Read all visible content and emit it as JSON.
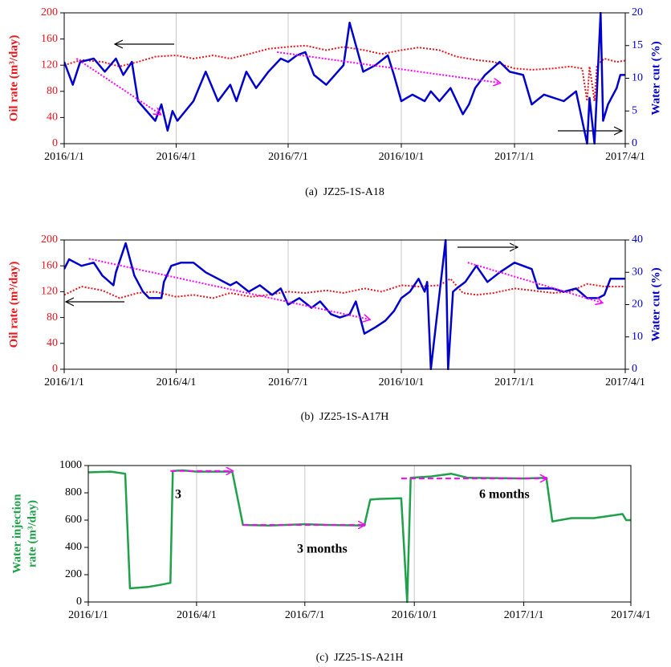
{
  "chart_data": [
    {
      "type": "line",
      "caption": "(a)  JZ25-1S-A18",
      "y_label": "Oil rate (m³/day)",
      "y2_label": "Water cut (%)",
      "xlim": [
        "2016/1/1",
        "2017/4/1"
      ],
      "xticks": [
        "2016/1/1",
        "2016/4/1",
        "2016/7/1",
        "2016/10/1",
        "2017/1/1",
        "2017/4/1"
      ],
      "ylim": [
        0,
        200
      ],
      "yticks": [
        0,
        40,
        80,
        120,
        160,
        200
      ],
      "y2lim": [
        0,
        20
      ],
      "y2ticks": [
        0,
        5,
        10,
        15,
        20
      ],
      "grid": "x",
      "y_color": "#e8141b",
      "y2_color": "#0000cc",
      "series": [
        {
          "color": "#e8141b",
          "style": "dotted",
          "x": [
            "2016/1/1",
            "2016/1/15",
            "2016/2/1",
            "2016/2/15",
            "2016/3/1",
            "2016/3/15",
            "2016/4/1",
            "2016/4/15",
            "2016/5/1",
            "2016/5/15",
            "2016/6/1",
            "2016/6/15",
            "2016/7/1",
            "2016/7/15",
            "2016/8/1",
            "2016/8/15",
            "2016/9/1",
            "2016/9/15",
            "2016/10/1",
            "2016/10/15",
            "2016/11/1",
            "2016/11/15",
            "2016/12/1",
            "2016/12/15",
            "2017/1/1",
            "2017/1/15",
            "2017/2/1",
            "2017/2/15",
            "2017/2/25",
            "2017/3/1",
            "2017/3/3",
            "2017/3/7",
            "2017/3/9",
            "2017/3/15",
            "2017/3/25",
            "2017/4/1"
          ],
          "values": [
            120,
            128,
            125,
            118,
            125,
            133,
            135,
            130,
            135,
            130,
            138,
            145,
            148,
            150,
            143,
            148,
            143,
            137,
            143,
            147,
            143,
            133,
            128,
            125,
            115,
            113,
            115,
            118,
            115,
            65,
            118,
            65,
            120,
            130,
            125,
            127
          ]
        },
        {
          "color": "#0000cc",
          "style": "solid",
          "axis": "y2",
          "x": [
            "2016/1/1",
            "2016/1/8",
            "2016/1/14",
            "2016/1/25",
            "2016/2/3",
            "2016/2/12",
            "2016/2/18",
            "2016/2/25",
            "2016/3/1",
            "2016/3/15",
            "2016/3/20",
            "2016/3/25",
            "2016/3/29",
            "2016/4/2",
            "2016/4/15",
            "2016/4/25",
            "2016/5/5",
            "2016/5/15",
            "2016/5/20",
            "2016/5/28",
            "2016/6/5",
            "2016/6/15",
            "2016/6/25",
            "2016/7/1",
            "2016/7/8",
            "2016/7/15",
            "2016/7/22",
            "2016/8/1",
            "2016/8/8",
            "2016/8/15",
            "2016/8/20",
            "2016/8/31",
            "2016/9/10",
            "2016/9/20",
            "2016/9/25",
            "2016/10/1",
            "2016/10/10",
            "2016/10/20",
            "2016/10/25",
            "2016/11/1",
            "2016/11/10",
            "2016/11/20",
            "2016/11/25",
            "2016/11/30",
            "2016/12/8",
            "2016/12/20",
            "2016/12/28",
            "2017/1/8",
            "2017/1/15",
            "2017/1/25",
            "2017/2/10",
            "2017/2/20",
            "2017/3/1",
            "2017/3/3",
            "2017/3/7",
            "2017/3/12",
            "2017/3/14",
            "2017/3/18",
            "2017/3/25",
            "2017/3/28",
            "2017/4/1"
          ],
          "values": [
            12.5,
            9,
            12.5,
            13,
            11,
            13,
            10.5,
            12.5,
            6.5,
            3.5,
            6,
            2,
            5,
            3.5,
            6.5,
            11,
            6.5,
            9,
            6.5,
            11,
            8.5,
            11,
            13,
            12.5,
            13.5,
            14,
            10.5,
            9,
            10.5,
            12,
            18.5,
            11,
            12,
            13.5,
            10.5,
            6.5,
            7.5,
            6.5,
            8,
            6.5,
            8.5,
            4.5,
            6,
            8.5,
            10.5,
            12.5,
            11,
            10.5,
            6,
            7.5,
            6.5,
            8,
            0,
            7,
            0,
            20,
            3.5,
            6,
            8.5,
            10.5,
            10.5
          ]
        },
        {
          "color": "#ff00ff",
          "style": "trend",
          "x": [
            "2016/1/11",
            "2016/3/19"
          ],
          "values": [
            130,
            45
          ]
        },
        {
          "color": "#ff00ff",
          "style": "trend",
          "x": [
            "2016/6/22",
            "2016/12/20"
          ],
          "values": [
            140,
            93
          ]
        }
      ]
    },
    {
      "type": "line",
      "caption": "(b)  JZ25-1S-A17H",
      "y_label": "Oil rate (m³/day)",
      "y2_label": "Water cut (%)",
      "xlim": [
        "2016/1/1",
        "2017/4/1"
      ],
      "xticks": [
        "2016/1/1",
        "2016/4/1",
        "2016/7/1",
        "2016/10/1",
        "2017/1/1",
        "2017/4/1"
      ],
      "ylim": [
        0,
        200
      ],
      "yticks": [
        0,
        40,
        80,
        120,
        160,
        200
      ],
      "y2lim": [
        0,
        40
      ],
      "y2ticks": [
        0,
        10,
        20,
        30,
        40
      ],
      "grid": "x",
      "y_color": "#e8141b",
      "y2_color": "#0000cc",
      "series": [
        {
          "color": "#e8141b",
          "style": "dotted",
          "x": [
            "2016/1/1",
            "2016/1/15",
            "2016/2/1",
            "2016/2/15",
            "2016/3/1",
            "2016/3/15",
            "2016/4/1",
            "2016/4/15",
            "2016/5/1",
            "2016/5/15",
            "2016/6/1",
            "2016/6/15",
            "2016/7/1",
            "2016/7/15",
            "2016/8/1",
            "2016/8/15",
            "2016/9/1",
            "2016/9/15",
            "2016/10/1",
            "2016/10/15",
            "2016/11/1",
            "2016/11/10",
            "2016/11/20",
            "2016/12/1",
            "2016/12/15",
            "2017/1/1",
            "2017/1/15",
            "2017/2/1",
            "2017/2/15",
            "2017/3/1",
            "2017/3/15",
            "2017/4/1"
          ],
          "values": [
            115,
            128,
            122,
            110,
            118,
            120,
            112,
            115,
            110,
            118,
            112,
            115,
            120,
            118,
            122,
            118,
            125,
            120,
            130,
            128,
            130,
            140,
            118,
            115,
            118,
            125,
            122,
            118,
            120,
            132,
            128,
            128
          ]
        },
        {
          "color": "#0000cc",
          "style": "solid",
          "axis": "y2",
          "x": [
            "2016/1/1",
            "2016/1/5",
            "2016/1/15",
            "2016/1/25",
            "2016/2/1",
            "2016/2/10",
            "2016/2/12",
            "2016/2/20",
            "2016/2/27",
            "2016/3/5",
            "2016/3/10",
            "2016/3/20",
            "2016/3/22",
            "2016/3/28",
            "2016/4/5",
            "2016/4/15",
            "2016/4/25",
            "2016/5/5",
            "2016/5/15",
            "2016/5/20",
            "2016/5/30",
            "2016/6/8",
            "2016/6/18",
            "2016/6/25",
            "2016/7/1",
            "2016/7/10",
            "2016/7/20",
            "2016/7/27",
            "2016/8/5",
            "2016/8/12",
            "2016/8/20",
            "2016/8/25",
            "2016/9/1",
            "2016/9/10",
            "2016/9/18",
            "2016/9/25",
            "2016/10/1",
            "2016/10/8",
            "2016/10/15",
            "2016/10/20",
            "2016/10/22",
            "2016/10/25",
            "2016/11/6",
            "2016/11/8",
            "2016/11/12",
            "2016/11/15",
            "2016/11/22",
            "2016/12/1",
            "2016/12/10",
            "2016/12/20",
            "2017/1/1",
            "2017/1/15",
            "2017/1/20",
            "2017/2/1",
            "2017/2/10",
            "2017/2/20",
            "2017/3/1",
            "2017/3/10",
            "2017/3/15",
            "2017/3/20",
            "2017/4/1"
          ],
          "values": [
            31,
            34,
            32,
            33,
            29,
            26,
            30,
            39,
            29,
            24,
            22,
            22,
            27,
            32,
            33,
            33,
            30,
            28,
            26,
            27,
            24,
            26,
            23,
            25,
            20,
            22,
            19,
            21,
            17,
            16,
            17,
            21,
            11,
            13,
            15,
            18,
            22,
            24,
            28,
            24,
            27,
            0,
            40,
            0,
            24,
            25,
            27,
            32,
            27,
            30,
            33,
            31,
            25,
            25,
            24,
            25,
            22,
            22,
            23,
            28,
            28
          ]
        },
        {
          "color": "#ff00ff",
          "style": "trend",
          "x": [
            "2016/1/21",
            "2016/9/5"
          ],
          "values": [
            171,
            77
          ]
        },
        {
          "color": "#ff00ff",
          "style": "trend",
          "x": [
            "2016/11/24",
            "2017/3/13"
          ],
          "values": [
            165,
            103
          ]
        }
      ]
    },
    {
      "type": "line",
      "caption": "(c)  JZ25-1S-A21H",
      "y_label": [
        "Water injection",
        "rate (m³/day)"
      ],
      "xlim": [
        "2016/1/1",
        "2017/4/1"
      ],
      "xticks": [
        "2016/1/1",
        "2016/4/1",
        "2016/7/1",
        "2016/10/1",
        "2017/1/1",
        "2017/4/1"
      ],
      "ylim": [
        0,
        1000
      ],
      "yticks": [
        0,
        200,
        400,
        600,
        800,
        1000
      ],
      "grid": "x",
      "y_color": "#1fa04a",
      "annotations": [
        "3",
        "3 months",
        "6 months"
      ],
      "series": [
        {
          "color": "#1fa04a",
          "style": "solid",
          "x": [
            "2016/1/1",
            "2016/1/20",
            "2016/2/1",
            "2016/2/5",
            "2016/2/20",
            "2016/3/1",
            "2016/3/10",
            "2016/3/12",
            "2016/3/20",
            "2016/4/1",
            "2016/5/1",
            "2016/5/10",
            "2016/6/1",
            "2016/7/1",
            "2016/7/20",
            "2016/8/20",
            "2016/8/25",
            "2016/9/1",
            "2016/9/20",
            "2016/9/25",
            "2016/9/28",
            "2016/10/15",
            "2016/11/1",
            "2016/11/15",
            "2017/1/1",
            "2017/1/20",
            "2017/1/25",
            "2017/2/10",
            "2017/3/1",
            "2017/3/25",
            "2017/3/28",
            "2017/4/1"
          ],
          "values": [
            950,
            955,
            940,
            100,
            110,
            125,
            140,
            960,
            965,
            955,
            955,
            565,
            560,
            570,
            565,
            560,
            750,
            755,
            760,
            0,
            910,
            920,
            940,
            910,
            905,
            910,
            590,
            615,
            615,
            645,
            600,
            600
          ]
        },
        {
          "color": "#ff00ff",
          "style": "trend",
          "x": [
            "2016/3/10",
            "2016/5/1"
          ],
          "values": [
            960,
            960
          ]
        },
        {
          "color": "#ff00ff",
          "style": "trend",
          "x": [
            "2016/5/10",
            "2016/8/20"
          ],
          "values": [
            565,
            565
          ]
        },
        {
          "color": "#ff00ff",
          "style": "trend",
          "x": [
            "2016/9/20",
            "2017/1/20"
          ],
          "values": [
            905,
            905
          ]
        }
      ]
    }
  ]
}
